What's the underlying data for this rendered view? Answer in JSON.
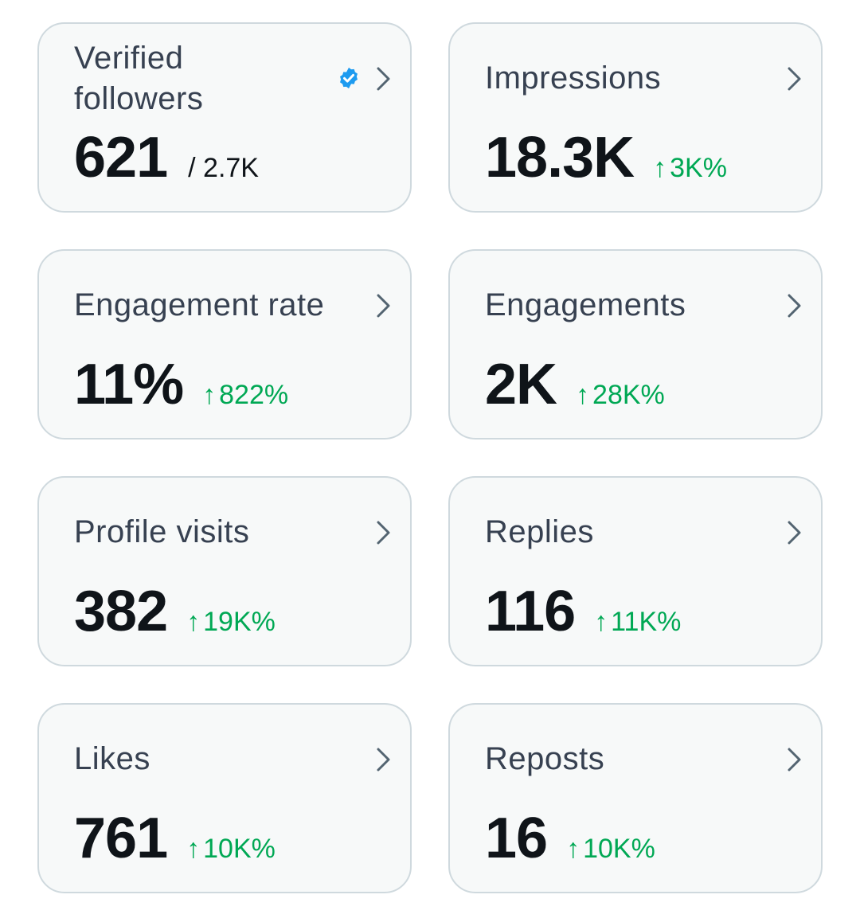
{
  "colors": {
    "card_background": "#f7f9f9",
    "card_border": "#cfd9de",
    "label_text": "#374151",
    "value_text": "#0f1419",
    "positive_delta": "#00a854",
    "verified_badge": "#1d9bf0"
  },
  "icons": {
    "chevron": "chevron-right-icon",
    "verified": "verified-badge-icon",
    "delta": "arrow-up-icon"
  },
  "cards": [
    {
      "label": "Verified followers",
      "value": "621",
      "sub": "/ 2.7K",
      "verified_badge": true
    },
    {
      "label": "Impressions",
      "value": "18.3K",
      "arrow": "↑",
      "delta": "3K%"
    },
    {
      "label": "Engagement rate",
      "value": "11%",
      "arrow": "↑",
      "delta": "822%"
    },
    {
      "label": "Engagements",
      "value": "2K",
      "arrow": "↑",
      "delta": "28K%"
    },
    {
      "label": "Profile visits",
      "value": "382",
      "arrow": "↑",
      "delta": "19K%"
    },
    {
      "label": "Replies",
      "value": "116",
      "arrow": "↑",
      "delta": "11K%"
    },
    {
      "label": "Likes",
      "value": "761",
      "arrow": "↑",
      "delta": "10K%"
    },
    {
      "label": "Reposts",
      "value": "16",
      "arrow": "↑",
      "delta": "10K%"
    }
  ]
}
